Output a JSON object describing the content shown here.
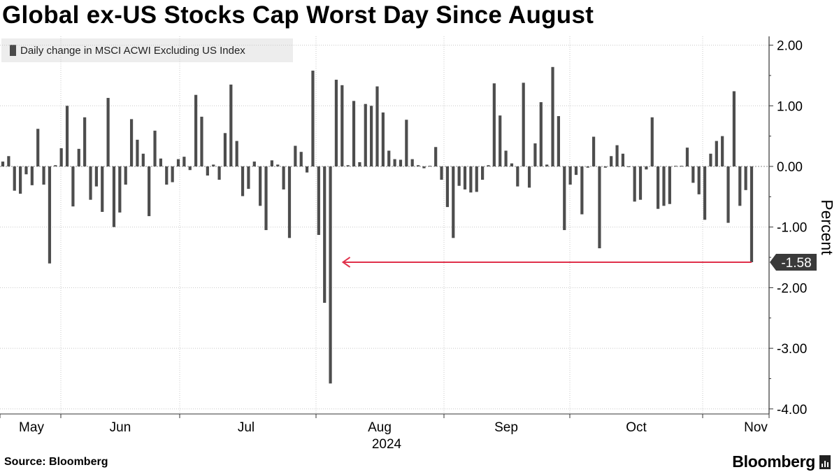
{
  "chart_data": {
    "type": "bar",
    "title": "Global ex-US Stocks Cap Worst Day Since August",
    "legend": "Daily change in MSCI ACWI Excluding US Index",
    "ylabel": "Percent",
    "ylim": [
      -4.1,
      2.1
    ],
    "yticks": [
      2.0,
      1.0,
      0.0,
      -1.0,
      -2.0,
      -3.0,
      -4.0
    ],
    "ytick_labels": [
      "2.00",
      "1.00",
      "0.00",
      "-1.00",
      "-2.00",
      "-3.00",
      "-4.00"
    ],
    "xtick_labels": [
      "May",
      "Jun",
      "Jul",
      "Aug",
      "Sep",
      "Oct",
      "Nov"
    ],
    "year_label": "2024",
    "values": [
      0.08,
      0.17,
      -0.4,
      -0.45,
      -0.13,
      -0.31,
      0.62,
      -0.3,
      -1.6,
      0.02,
      0.3,
      1.0,
      -0.66,
      0.29,
      0.81,
      -0.55,
      -0.33,
      -0.75,
      1.13,
      -1.0,
      -0.76,
      -0.3,
      0.78,
      0.44,
      0.21,
      -0.82,
      0.59,
      0.13,
      -0.3,
      -0.26,
      0.12,
      0.16,
      -0.06,
      1.18,
      0.82,
      -0.15,
      0.03,
      -0.22,
      0.55,
      1.35,
      0.42,
      -0.49,
      -0.37,
      0.08,
      -0.65,
      -1.05,
      0.1,
      0.03,
      -0.38,
      -1.18,
      0.34,
      0.24,
      -0.1,
      1.58,
      -1.13,
      -2.25,
      -3.58,
      1.43,
      1.34,
      0.02,
      1.08,
      0.07,
      1.03,
      1.0,
      1.32,
      0.89,
      0.26,
      0.12,
      0.11,
      0.77,
      0.12,
      0.02,
      -0.03,
      0.01,
      0.32,
      -0.22,
      -0.67,
      -1.18,
      -0.32,
      -0.38,
      -0.43,
      -0.42,
      -0.22,
      0.02,
      1.37,
      0.84,
      0.26,
      0.05,
      -0.33,
      1.38,
      -0.35,
      0.38,
      1.06,
      0.03,
      1.64,
      0.83,
      -1.05,
      -0.3,
      -0.14,
      -0.79,
      -0.02,
      0.49,
      -1.35,
      -0.02,
      0.17,
      0.35,
      0.21,
      -0.01,
      -0.58,
      -0.55,
      -0.05,
      0.81,
      -0.7,
      -0.65,
      -0.62,
      0.01,
      0.01,
      0.31,
      -0.27,
      -0.46,
      -0.88,
      0.21,
      0.42,
      0.5,
      -0.93,
      1.24,
      -0.65,
      -0.39,
      -1.58
    ],
    "annotation": {
      "label": "-1.58",
      "value": -1.58,
      "arrow_color": "#e0304a",
      "arrow_from_index": 128,
      "arrow_to_index": 56
    },
    "bar_color": "#4d4d4d",
    "grid": true
  },
  "footer": {
    "source": "Source: Bloomberg",
    "brand": "Bloomberg"
  }
}
